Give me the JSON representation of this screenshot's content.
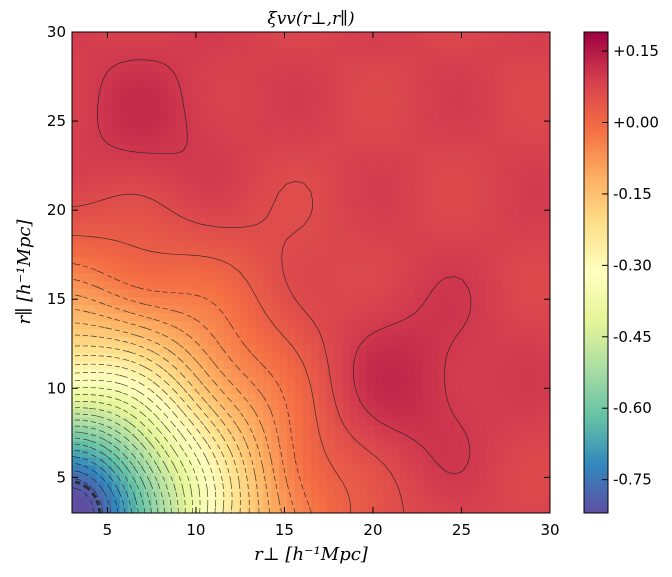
{
  "chart_data": {
    "type": "heatmap",
    "title": "ξvv(r⊥,r∥)",
    "xlabel": "r⊥  [h⁻¹Mpc]",
    "ylabel": "r∥  [h⁻¹Mpc]",
    "xlim": [
      3,
      30
    ],
    "ylim": [
      3,
      30
    ],
    "x_ticks": [
      "5",
      "10",
      "15",
      "20",
      "25",
      "30"
    ],
    "y_ticks": [
      "5",
      "10",
      "15",
      "20",
      "25",
      "30"
    ],
    "colorbar": {
      "range": [
        -0.82,
        0.19
      ],
      "ticks": [
        "+0.15",
        "+0.00",
        "-0.15",
        "-0.30",
        "-0.45",
        "-0.60",
        "-0.75"
      ],
      "colormap": "Spectral"
    },
    "contour_levels": {
      "solid_positive": [
        0.02,
        0.06,
        0.1,
        0.14
      ],
      "dashed_negative_step": 0.03
    },
    "features": [
      {
        "kind": "minimum",
        "r_perp": 3,
        "r_par": 3,
        "value": -0.82
      },
      {
        "kind": "maximum",
        "r_perp": 21,
        "r_par": 10,
        "value": 0.14
      },
      {
        "kind": "maximum",
        "r_perp": 7,
        "r_par": 24,
        "value": 0.12
      }
    ]
  }
}
